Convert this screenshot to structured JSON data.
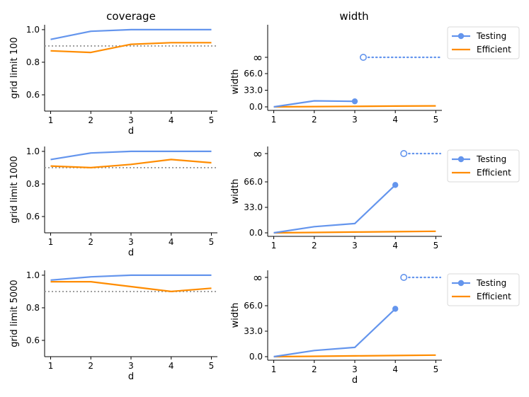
{
  "figure": {
    "col_titles": [
      "coverage",
      "width"
    ]
  },
  "colors": {
    "testing": "#6495ED",
    "efficient": "#FF8C00",
    "target_line": "#999999"
  },
  "legend": {
    "entries": [
      "Testing",
      "Efficient"
    ]
  },
  "chart_data": [
    {
      "type": "line",
      "row": 0,
      "panel": "coverage",
      "title": "coverage",
      "xlabel": "d",
      "ylabel": "grid limit 100",
      "x": [
        1,
        2,
        3,
        4,
        5
      ],
      "xticks": [
        "1",
        "2",
        "3",
        "4",
        "5"
      ],
      "ylim": [
        0.5,
        1.03
      ],
      "yticks": [
        "0.6",
        "0.8",
        "1.0"
      ],
      "reference_line": 0.9,
      "series": [
        {
          "name": "Testing",
          "values": [
            0.94,
            0.99,
            1.0,
            1.0,
            1.0
          ]
        },
        {
          "name": "Efficient",
          "values": [
            0.87,
            0.86,
            0.91,
            0.92,
            0.92
          ]
        }
      ]
    },
    {
      "type": "line",
      "row": 0,
      "panel": "width",
      "title": "width",
      "xlabel": "",
      "ylabel": "width",
      "x": [
        1,
        2,
        3,
        4,
        5
      ],
      "xticks": [
        "1",
        "2",
        "3",
        "4",
        "5"
      ],
      "yticks": [
        "0.0",
        "33.0",
        "66.0",
        "∞"
      ],
      "infinite_from_x": 3,
      "legend_position": "right",
      "series": [
        {
          "name": "Testing",
          "values": [
            0,
            12,
            11,
            null,
            null
          ]
        },
        {
          "name": "Efficient",
          "values": [
            0,
            0.5,
            1,
            1.5,
            2
          ]
        }
      ]
    },
    {
      "type": "line",
      "row": 1,
      "panel": "coverage",
      "title": "",
      "xlabel": "d",
      "ylabel": "grid limit 1000",
      "x": [
        1,
        2,
        3,
        4,
        5
      ],
      "xticks": [
        "1",
        "2",
        "3",
        "4",
        "5"
      ],
      "ylim": [
        0.5,
        1.03
      ],
      "yticks": [
        "0.6",
        "0.8",
        "1.0"
      ],
      "reference_line": 0.9,
      "series": [
        {
          "name": "Testing",
          "values": [
            0.95,
            0.99,
            1.0,
            1.0,
            1.0
          ]
        },
        {
          "name": "Efficient",
          "values": [
            0.91,
            0.9,
            0.92,
            0.95,
            0.93
          ]
        }
      ]
    },
    {
      "type": "line",
      "row": 1,
      "panel": "width",
      "title": "",
      "xlabel": "",
      "ylabel": "width",
      "x": [
        1,
        2,
        3,
        4,
        5
      ],
      "xticks": [
        "1",
        "2",
        "3",
        "4",
        "5"
      ],
      "yticks": [
        "0.0",
        "33.0",
        "66.0",
        "∞"
      ],
      "infinite_from_x": 4,
      "legend_position": "right",
      "series": [
        {
          "name": "Testing",
          "values": [
            0,
            8,
            12,
            62,
            null
          ]
        },
        {
          "name": "Efficient",
          "values": [
            0,
            0.5,
            1,
            1.5,
            2
          ]
        }
      ]
    },
    {
      "type": "line",
      "row": 2,
      "panel": "coverage",
      "title": "",
      "xlabel": "d",
      "ylabel": "grid limit 5000",
      "x": [
        1,
        2,
        3,
        4,
        5
      ],
      "xticks": [
        "1",
        "2",
        "3",
        "4",
        "5"
      ],
      "ylim": [
        0.5,
        1.03
      ],
      "yticks": [
        "0.6",
        "0.8",
        "1.0"
      ],
      "reference_line": 0.9,
      "series": [
        {
          "name": "Testing",
          "values": [
            0.97,
            0.99,
            1.0,
            1.0,
            1.0
          ]
        },
        {
          "name": "Efficient",
          "values": [
            0.96,
            0.96,
            0.93,
            0.9,
            0.92
          ]
        }
      ]
    },
    {
      "type": "line",
      "row": 2,
      "panel": "width",
      "title": "",
      "xlabel": "d",
      "ylabel": "width",
      "x": [
        1,
        2,
        3,
        4,
        5
      ],
      "xticks": [
        "1",
        "2",
        "3",
        "4",
        "5"
      ],
      "yticks": [
        "0.0",
        "33.0",
        "66.0",
        "∞"
      ],
      "infinite_from_x": 4,
      "legend_position": "right",
      "series": [
        {
          "name": "Testing",
          "values": [
            0,
            8,
            12,
            62,
            null
          ]
        },
        {
          "name": "Efficient",
          "values": [
            0,
            0.5,
            1,
            1.5,
            2
          ]
        }
      ]
    }
  ]
}
